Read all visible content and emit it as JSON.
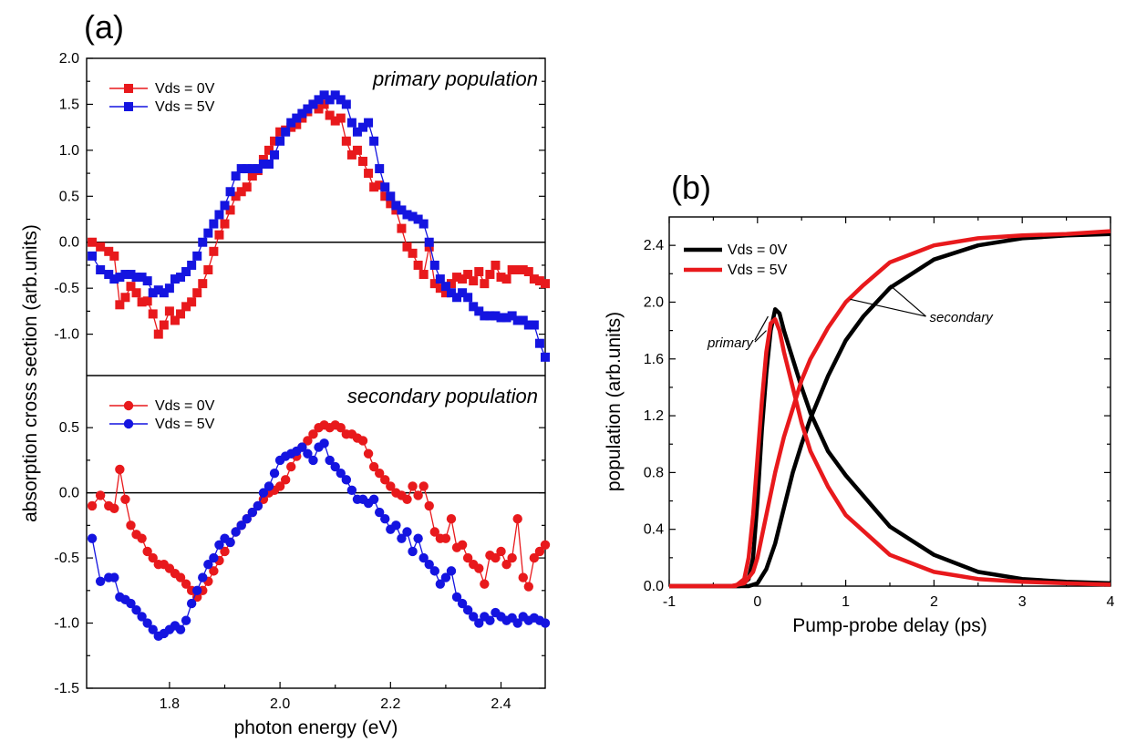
{
  "panel_a_label": "(a)",
  "panel_b_label": "(b)",
  "chart_data": [
    {
      "type": "line",
      "panel": "a-top",
      "annotation": "primary population",
      "ylabel": "absorption cross section (arb.units)",
      "xlim": [
        1.65,
        2.48
      ],
      "ylim": [
        -1.45,
        2.0
      ],
      "yticks": [
        2.0,
        1.5,
        1.0,
        0.5,
        0.0,
        -0.5,
        -1.0
      ],
      "ytick_labels": [
        "2.0",
        "1.5",
        "1.0",
        "0.5",
        "0.0",
        "-0.5",
        "-1.0"
      ],
      "zero_line": true,
      "marker": "square",
      "legend": "top-left",
      "series": [
        {
          "name": "Vds = 0V",
          "color": "#e8191c",
          "x": [
            1.66,
            1.675,
            1.69,
            1.7,
            1.71,
            1.72,
            1.73,
            1.74,
            1.75,
            1.76,
            1.77,
            1.78,
            1.79,
            1.8,
            1.81,
            1.82,
            1.83,
            1.84,
            1.85,
            1.86,
            1.87,
            1.88,
            1.89,
            1.9,
            1.91,
            1.92,
            1.93,
            1.94,
            1.95,
            1.96,
            1.97,
            1.98,
            1.99,
            2.0,
            2.01,
            2.02,
            2.03,
            2.04,
            2.05,
            2.06,
            2.07,
            2.08,
            2.09,
            2.1,
            2.11,
            2.12,
            2.13,
            2.14,
            2.15,
            2.16,
            2.17,
            2.18,
            2.19,
            2.2,
            2.21,
            2.22,
            2.23,
            2.24,
            2.25,
            2.26,
            2.27,
            2.28,
            2.29,
            2.3,
            2.31,
            2.32,
            2.33,
            2.34,
            2.35,
            2.36,
            2.37,
            2.38,
            2.39,
            2.4,
            2.41,
            2.42,
            2.43,
            2.44,
            2.45,
            2.46,
            2.47,
            2.48
          ],
          "y": [
            0.0,
            -0.05,
            -0.1,
            -0.15,
            -0.68,
            -0.6,
            -0.48,
            -0.55,
            -0.65,
            -0.64,
            -0.78,
            -1.0,
            -0.9,
            -0.75,
            -0.85,
            -0.78,
            -0.7,
            -0.65,
            -0.55,
            -0.45,
            -0.3,
            -0.1,
            0.08,
            0.2,
            0.35,
            0.5,
            0.55,
            0.6,
            0.72,
            0.78,
            0.9,
            1.0,
            1.1,
            1.2,
            1.22,
            1.25,
            1.28,
            1.35,
            1.42,
            1.5,
            1.45,
            1.5,
            1.38,
            1.32,
            1.35,
            1.1,
            0.95,
            1.0,
            0.88,
            0.75,
            0.6,
            0.62,
            0.5,
            0.42,
            0.35,
            0.15,
            -0.05,
            -0.12,
            -0.25,
            -0.35,
            -0.05,
            -0.45,
            -0.5,
            -0.55,
            -0.45,
            -0.38,
            -0.4,
            -0.35,
            -0.42,
            -0.32,
            -0.45,
            -0.35,
            -0.25,
            -0.38,
            -0.4,
            -0.3,
            -0.3,
            -0.3,
            -0.32,
            -0.4,
            -0.42,
            -0.45
          ]
        },
        {
          "name": "Vds = 5V",
          "color": "#1414e0",
          "x": [
            1.66,
            1.675,
            1.69,
            1.7,
            1.71,
            1.72,
            1.73,
            1.74,
            1.75,
            1.76,
            1.77,
            1.78,
            1.79,
            1.8,
            1.81,
            1.82,
            1.83,
            1.84,
            1.85,
            1.86,
            1.87,
            1.88,
            1.89,
            1.9,
            1.91,
            1.92,
            1.93,
            1.94,
            1.95,
            1.96,
            1.97,
            1.98,
            1.99,
            2.0,
            2.01,
            2.02,
            2.03,
            2.04,
            2.05,
            2.06,
            2.07,
            2.08,
            2.09,
            2.1,
            2.11,
            2.12,
            2.13,
            2.14,
            2.15,
            2.16,
            2.17,
            2.18,
            2.19,
            2.2,
            2.21,
            2.22,
            2.23,
            2.24,
            2.25,
            2.26,
            2.27,
            2.28,
            2.29,
            2.3,
            2.31,
            2.32,
            2.33,
            2.34,
            2.35,
            2.36,
            2.37,
            2.38,
            2.39,
            2.4,
            2.41,
            2.42,
            2.43,
            2.44,
            2.45,
            2.46,
            2.47,
            2.48
          ],
          "y": [
            -0.15,
            -0.3,
            -0.35,
            -0.4,
            -0.38,
            -0.35,
            -0.35,
            -0.38,
            -0.38,
            -0.42,
            -0.55,
            -0.52,
            -0.55,
            -0.5,
            -0.4,
            -0.38,
            -0.32,
            -0.25,
            -0.15,
            0.0,
            0.1,
            0.2,
            0.3,
            0.4,
            0.55,
            0.72,
            0.8,
            0.8,
            0.8,
            0.8,
            0.85,
            0.85,
            0.95,
            1.1,
            1.2,
            1.3,
            1.35,
            1.4,
            1.45,
            1.5,
            1.55,
            1.6,
            1.55,
            1.6,
            1.55,
            1.5,
            1.3,
            1.2,
            1.25,
            1.3,
            1.1,
            0.8,
            0.6,
            0.5,
            0.4,
            0.35,
            0.3,
            0.28,
            0.25,
            0.2,
            0.0,
            -0.25,
            -0.4,
            -0.48,
            -0.55,
            -0.6,
            -0.55,
            -0.6,
            -0.7,
            -0.75,
            -0.8,
            -0.8,
            -0.8,
            -0.82,
            -0.82,
            -0.8,
            -0.85,
            -0.85,
            -0.9,
            -0.9,
            -1.1,
            -1.25
          ]
        }
      ]
    },
    {
      "type": "line",
      "panel": "a-bottom",
      "annotation": "secondary population",
      "xlabel": "photon energy (eV)",
      "xlim": [
        1.65,
        2.48
      ],
      "ylim": [
        -1.5,
        0.9
      ],
      "xticks": [
        1.8,
        2.0,
        2.2,
        2.4
      ],
      "xtick_labels": [
        "1.8",
        "2.0",
        "2.2",
        "2.4"
      ],
      "yticks": [
        0.5,
        0.0,
        -0.5,
        -1.0,
        -1.5
      ],
      "ytick_labels": [
        "0.5",
        "0.0",
        "-0.5",
        "-1.0",
        "-1.5"
      ],
      "zero_line": true,
      "marker": "circle",
      "legend": "top-left",
      "series": [
        {
          "name": "Vds = 0V",
          "color": "#e8191c",
          "x": [
            1.66,
            1.675,
            1.69,
            1.7,
            1.71,
            1.72,
            1.73,
            1.74,
            1.75,
            1.76,
            1.77,
            1.78,
            1.79,
            1.8,
            1.81,
            1.82,
            1.83,
            1.84,
            1.85,
            1.86,
            1.87,
            1.88,
            1.89,
            1.9,
            1.91,
            1.92,
            1.93,
            1.94,
            1.95,
            1.96,
            1.97,
            1.98,
            1.99,
            2.0,
            2.01,
            2.02,
            2.03,
            2.04,
            2.05,
            2.06,
            2.07,
            2.08,
            2.09,
            2.1,
            2.11,
            2.12,
            2.13,
            2.14,
            2.15,
            2.16,
            2.17,
            2.18,
            2.19,
            2.2,
            2.21,
            2.22,
            2.23,
            2.24,
            2.25,
            2.26,
            2.27,
            2.28,
            2.29,
            2.3,
            2.31,
            2.32,
            2.33,
            2.34,
            2.35,
            2.36,
            2.37,
            2.38,
            2.39,
            2.4,
            2.41,
            2.42,
            2.43,
            2.44,
            2.45,
            2.46,
            2.47,
            2.48
          ],
          "y": [
            -0.1,
            -0.02,
            -0.1,
            -0.12,
            0.18,
            -0.05,
            -0.25,
            -0.32,
            -0.35,
            -0.45,
            -0.5,
            -0.55,
            -0.55,
            -0.58,
            -0.62,
            -0.65,
            -0.7,
            -0.75,
            -0.8,
            -0.75,
            -0.68,
            -0.6,
            -0.52,
            -0.45,
            -0.38,
            -0.3,
            -0.25,
            -0.2,
            -0.15,
            -0.1,
            -0.05,
            0.0,
            0.02,
            0.05,
            0.1,
            0.2,
            0.28,
            0.35,
            0.4,
            0.45,
            0.5,
            0.52,
            0.5,
            0.52,
            0.5,
            0.45,
            0.45,
            0.42,
            0.4,
            0.3,
            0.2,
            0.15,
            0.1,
            0.05,
            0.0,
            -0.02,
            -0.05,
            0.05,
            -0.02,
            0.05,
            -0.1,
            -0.3,
            -0.35,
            -0.35,
            -0.2,
            -0.42,
            -0.4,
            -0.5,
            -0.55,
            -0.58,
            -0.7,
            -0.48,
            -0.5,
            -0.45,
            -0.55,
            -0.5,
            -0.2,
            -0.65,
            -0.72,
            -0.5,
            -0.45,
            -0.4
          ]
        },
        {
          "name": "Vds = 5V",
          "color": "#1414e0",
          "x": [
            1.66,
            1.675,
            1.69,
            1.7,
            1.71,
            1.72,
            1.73,
            1.74,
            1.75,
            1.76,
            1.77,
            1.78,
            1.79,
            1.8,
            1.81,
            1.82,
            1.83,
            1.84,
            1.85,
            1.86,
            1.87,
            1.88,
            1.89,
            1.9,
            1.91,
            1.92,
            1.93,
            1.94,
            1.95,
            1.96,
            1.97,
            1.98,
            1.99,
            2.0,
            2.01,
            2.02,
            2.03,
            2.04,
            2.05,
            2.06,
            2.07,
            2.08,
            2.09,
            2.1,
            2.11,
            2.12,
            2.13,
            2.14,
            2.15,
            2.16,
            2.17,
            2.18,
            2.19,
            2.2,
            2.21,
            2.22,
            2.23,
            2.24,
            2.25,
            2.26,
            2.27,
            2.28,
            2.29,
            2.3,
            2.31,
            2.32,
            2.33,
            2.34,
            2.35,
            2.36,
            2.37,
            2.38,
            2.39,
            2.4,
            2.41,
            2.42,
            2.43,
            2.44,
            2.45,
            2.46,
            2.47,
            2.48
          ],
          "y": [
            -0.35,
            -0.68,
            -0.65,
            -0.65,
            -0.8,
            -0.82,
            -0.85,
            -0.9,
            -0.95,
            -1.0,
            -1.05,
            -1.1,
            -1.08,
            -1.05,
            -1.02,
            -1.05,
            -0.98,
            -0.85,
            -0.75,
            -0.65,
            -0.55,
            -0.5,
            -0.4,
            -0.35,
            -0.38,
            -0.3,
            -0.25,
            -0.2,
            -0.15,
            -0.1,
            0.0,
            0.05,
            0.15,
            0.25,
            0.28,
            0.3,
            0.32,
            0.35,
            0.3,
            0.25,
            0.35,
            0.38,
            0.25,
            0.2,
            0.15,
            0.1,
            0.02,
            -0.05,
            -0.05,
            -0.08,
            -0.05,
            -0.15,
            -0.2,
            -0.28,
            -0.25,
            -0.35,
            -0.3,
            -0.45,
            -0.35,
            -0.5,
            -0.55,
            -0.6,
            -0.7,
            -0.65,
            -0.6,
            -0.8,
            -0.85,
            -0.9,
            -0.95,
            -1.0,
            -0.95,
            -0.98,
            -0.92,
            -0.95,
            -0.98,
            -0.96,
            -1.0,
            -0.95,
            -0.98,
            -0.96,
            -0.98,
            -1.0
          ]
        }
      ]
    },
    {
      "type": "line",
      "panel": "b",
      "xlabel": "Pump-probe delay (ps)",
      "ylabel": "population (arb.units)",
      "xlim": [
        -1,
        4
      ],
      "ylim": [
        0.0,
        2.6
      ],
      "xticks": [
        -1,
        0,
        1,
        2,
        3,
        4
      ],
      "xtick_labels": [
        "-1",
        "0",
        "1",
        "2",
        "3",
        "4"
      ],
      "yticks": [
        0.0,
        0.4,
        0.8,
        1.2,
        1.6,
        2.0,
        2.4
      ],
      "ytick_labels": [
        "0.0",
        "0.4",
        "0.8",
        "1.2",
        "1.6",
        "2.0",
        "2.4"
      ],
      "legend": "top-left",
      "annotations": [
        {
          "text": "primary",
          "x": -0.05,
          "y": 1.72
        },
        {
          "text": "secondary",
          "x": 1.95,
          "y": 1.9
        }
      ],
      "series": [
        {
          "name": "Vds = 0V",
          "role": "primary",
          "color": "#000000",
          "x": [
            -1,
            -0.5,
            -0.2,
            -0.1,
            -0.05,
            0.0,
            0.05,
            0.1,
            0.15,
            0.2,
            0.25,
            0.3,
            0.4,
            0.5,
            0.6,
            0.8,
            1.0,
            1.5,
            2.0,
            2.5,
            3.0,
            3.5,
            4.0
          ],
          "y": [
            0.0,
            0.0,
            0.0,
            0.05,
            0.2,
            0.6,
            1.1,
            1.5,
            1.8,
            1.95,
            1.92,
            1.8,
            1.6,
            1.4,
            1.22,
            0.95,
            0.78,
            0.42,
            0.22,
            0.1,
            0.05,
            0.03,
            0.02
          ]
        },
        {
          "name": "Vds = 0V",
          "role": "secondary",
          "color": "#000000",
          "x": [
            -1,
            -0.3,
            -0.1,
            0.0,
            0.1,
            0.2,
            0.3,
            0.4,
            0.5,
            0.6,
            0.8,
            1.0,
            1.2,
            1.5,
            2.0,
            2.5,
            3.0,
            3.5,
            4.0
          ],
          "y": [
            0.0,
            0.0,
            0.0,
            0.02,
            0.12,
            0.3,
            0.55,
            0.8,
            1.0,
            1.18,
            1.48,
            1.73,
            1.9,
            2.1,
            2.3,
            2.4,
            2.45,
            2.47,
            2.48
          ]
        },
        {
          "name": "Vds = 5V",
          "role": "primary",
          "color": "#e8191c",
          "x": [
            -1,
            -0.5,
            -0.25,
            -0.15,
            -0.1,
            -0.05,
            0.0,
            0.05,
            0.1,
            0.15,
            0.2,
            0.25,
            0.3,
            0.4,
            0.5,
            0.6,
            0.8,
            1.0,
            1.5,
            2.0,
            2.5,
            3.0,
            3.5,
            4.0
          ],
          "y": [
            0.0,
            0.0,
            0.0,
            0.05,
            0.2,
            0.5,
            0.9,
            1.3,
            1.65,
            1.85,
            1.88,
            1.8,
            1.65,
            1.4,
            1.15,
            0.95,
            0.7,
            0.5,
            0.22,
            0.1,
            0.05,
            0.03,
            0.02,
            0.01
          ]
        },
        {
          "name": "Vds = 5V",
          "role": "secondary",
          "color": "#e8191c",
          "x": [
            -1,
            -0.3,
            -0.15,
            -0.05,
            0.0,
            0.05,
            0.1,
            0.2,
            0.3,
            0.4,
            0.5,
            0.6,
            0.8,
            1.0,
            1.2,
            1.5,
            2.0,
            2.5,
            3.0,
            3.5,
            4.0
          ],
          "y": [
            0.0,
            0.0,
            0.02,
            0.1,
            0.2,
            0.35,
            0.5,
            0.8,
            1.05,
            1.25,
            1.45,
            1.6,
            1.82,
            2.0,
            2.12,
            2.28,
            2.4,
            2.45,
            2.47,
            2.48,
            2.5
          ]
        }
      ]
    }
  ]
}
